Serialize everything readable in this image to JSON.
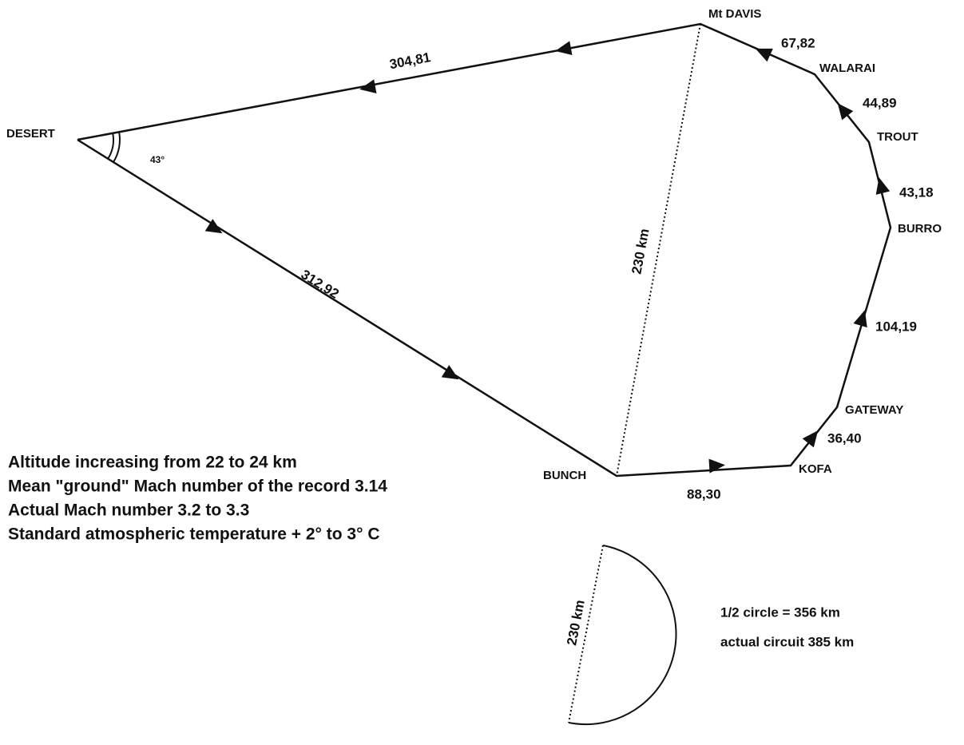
{
  "nodes": [
    {
      "label": "DESERT"
    },
    {
      "label": "Mt DAVIS"
    },
    {
      "label": "WALARAI"
    },
    {
      "label": "TROUT"
    },
    {
      "label": "BURRO"
    },
    {
      "label": "GATEWAY"
    },
    {
      "label": "KOFA"
    },
    {
      "label": "BUNCH"
    }
  ],
  "legs": [
    {
      "label": "304,81"
    },
    {
      "label": "67,82"
    },
    {
      "label": "44,89"
    },
    {
      "label": "43,18"
    },
    {
      "label": "104,19"
    },
    {
      "label": "36,40"
    },
    {
      "label": "88,30"
    },
    {
      "label": "312,92"
    }
  ],
  "angle": "43°",
  "chord": "230 km",
  "notes": [
    "Altitude increasing from 22 to 24 km",
    "Mean \"ground\" Mach number of the record 3.14",
    "Actual Mach number 3.2 to 3.3",
    "Standard atmospheric temperature + 2°  to 3° C"
  ],
  "semicircle": {
    "chord": "230 km",
    "lines": [
      "1/2 circle = 356 km",
      "actual circuit 385 km"
    ]
  }
}
